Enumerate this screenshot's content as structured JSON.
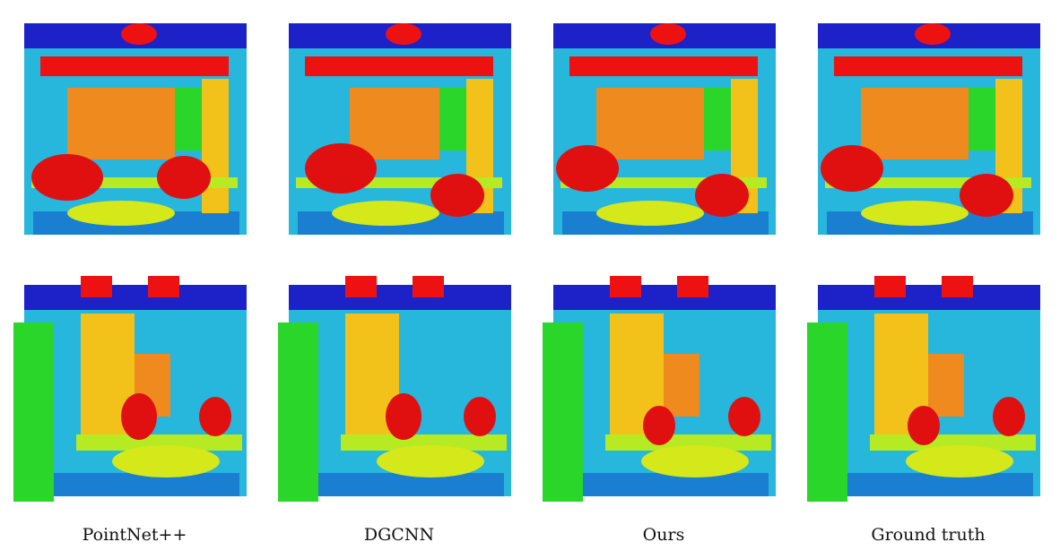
{
  "figure": {
    "labels": [
      "PointNet++",
      "DGCNN",
      "Ours",
      "Ground truth"
    ]
  },
  "palette": {
    "ceiling": "#1c22c8",
    "wall": "#27b6dc",
    "floor": "#1a7fd0",
    "beam": "#ee1111",
    "chair": "#e01010",
    "board": "#ef8a1e",
    "column": "#f2c21a",
    "door": "#2bd62b",
    "table": "#b6ea22",
    "clutter": "#d4e81a"
  }
}
